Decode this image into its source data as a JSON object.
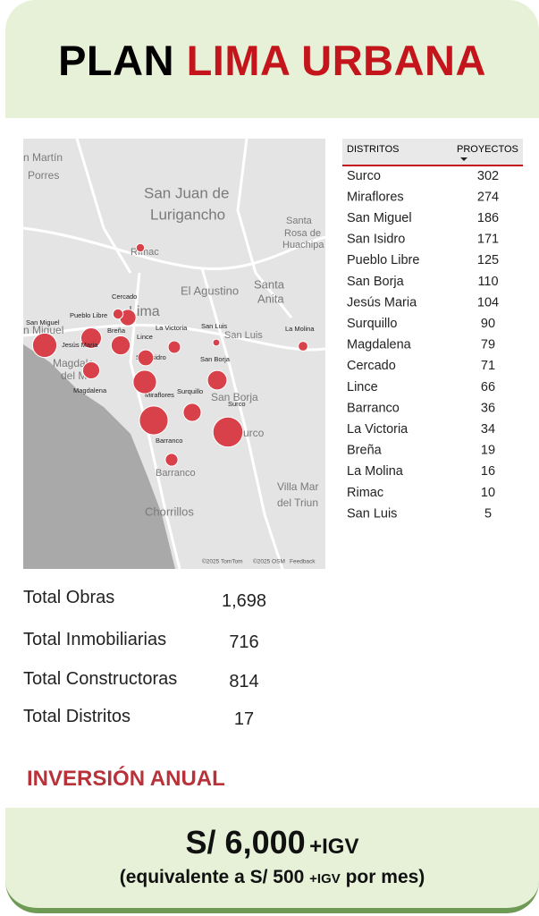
{
  "header": {
    "title_black": "PLAN",
    "title_red": "LIMA URBANA"
  },
  "table": {
    "columns": [
      "DISTRITOS",
      "PROYECTOS"
    ],
    "rows": [
      [
        "Surco",
        302
      ],
      [
        "Miraflores",
        274
      ],
      [
        "San Miguel",
        186
      ],
      [
        "San Isidro",
        171
      ],
      [
        "Pueblo Libre",
        125
      ],
      [
        "San Borja",
        110
      ],
      [
        "Jesús Maria",
        104
      ],
      [
        "Surquillo",
        90
      ],
      [
        "Magdalena",
        79
      ],
      [
        "Cercado",
        71
      ],
      [
        "Lince",
        66
      ],
      [
        "Barranco",
        36
      ],
      [
        "La Victoria",
        34
      ],
      [
        "Breña",
        19
      ],
      [
        "La Molina",
        16
      ],
      [
        "Rimac",
        10
      ],
      [
        "San Luis",
        5
      ]
    ]
  },
  "map": {
    "places": [
      "n Martín",
      "Porres",
      "San Juan de",
      "Lurigancho",
      "Santa",
      "Rosa de",
      "Huachipa",
      "Rímac",
      "El Agustino",
      "Santa",
      "Anita",
      "Lima",
      "n Miguel",
      "Magdale",
      "del M",
      "San Borja",
      "Surco",
      "San Luis",
      "Barranco",
      "Chorrillos",
      "Villa Mar",
      "del Triun"
    ],
    "credits": [
      "©2025 TomTom",
      "©2025 OSM",
      "Feedback"
    ]
  },
  "stats": [
    {
      "label": "Total Obras",
      "value": "1,698"
    },
    {
      "label": "Total Inmobiliarias",
      "value": "716"
    },
    {
      "label": "Total Constructoras",
      "value": "814"
    },
    {
      "label": "Total Distritos",
      "value": "17"
    }
  ],
  "section_title": "INVERSIÓN ANUAL",
  "price": {
    "amount": "S/ 6,000",
    "suffix": "+IGV",
    "note_start": "(equivalente a S/ 500",
    "note_suffix": "+IGV",
    "note_end": "por mes)"
  }
}
